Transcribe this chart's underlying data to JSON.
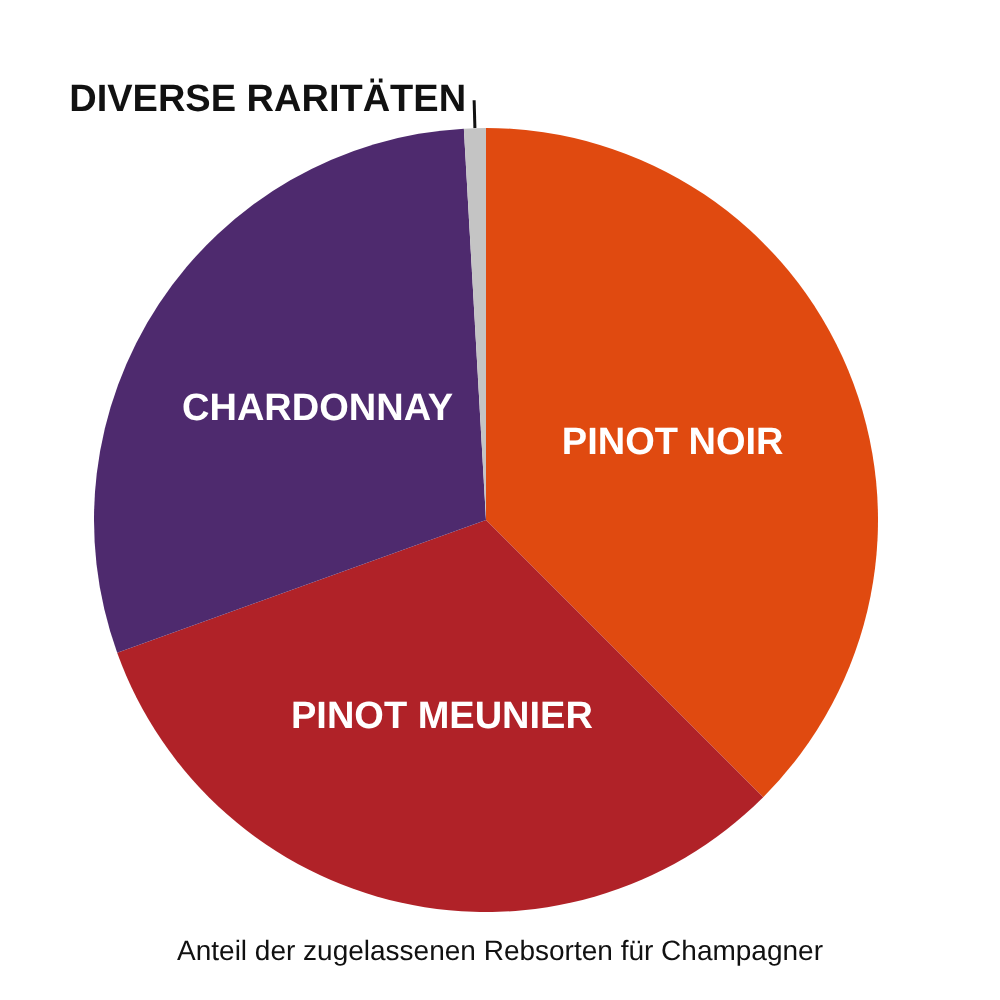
{
  "chart_data": {
    "type": "pie",
    "categories": [
      "PINOT NOIR",
      "PINOT MEUNIER",
      "CHARDONNAY",
      "DIVERSE RARITÄTEN"
    ],
    "values": [
      37.5,
      32,
      29.6,
      0.9
    ],
    "colors": [
      "#e04a10",
      "#b02228",
      "#4e2a6e",
      "#c4c4c4"
    ],
    "annotations": [
      "Anteil der zugelassenen Rebsorten für Champagner"
    ],
    "legend": false
  }
}
